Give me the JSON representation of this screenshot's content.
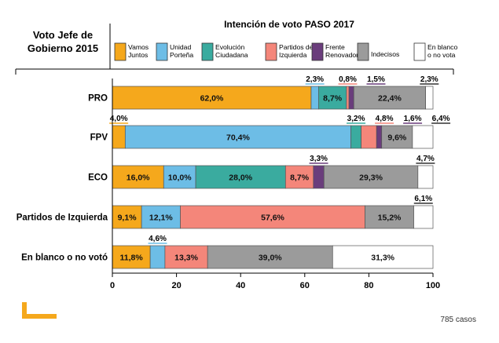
{
  "left_title_lines": [
    "Voto Jefe de",
    "Gobierno 2015"
  ],
  "footer_note": "785 casos",
  "colors": {
    "logo": "#f5a81c",
    "axis": "#000000"
  },
  "chart_data": {
    "type": "bar",
    "orientation": "horizontal",
    "stacked": true,
    "title": "Intención de voto PASO 2017",
    "xlim": [
      0,
      100
    ],
    "x_ticks": [
      0,
      20,
      40,
      60,
      80,
      100
    ],
    "grid": false,
    "legend_position": "top",
    "categories": [
      "PRO",
      "FPV",
      "ECO",
      "Partidos de Izquierda",
      "En blanco o no votó"
    ],
    "series": [
      {
        "name": "Vamos Juntos",
        "legend_lines": [
          "Vamos",
          "Juntos"
        ],
        "color": "#f5a81c",
        "values": [
          62.0,
          4.0,
          16.0,
          9.1,
          11.8
        ],
        "labels": [
          "62,0%",
          "4,0%",
          "16,0%",
          "9,1%",
          "11,8%"
        ]
      },
      {
        "name": "Unidad Porteña",
        "legend_lines": [
          "Unidad",
          "Porteña"
        ],
        "color": "#6dbde6",
        "values": [
          2.3,
          70.4,
          10.0,
          12.1,
          4.6
        ],
        "labels": [
          "2,3%",
          "70,4%",
          "10,0%",
          "12,1%",
          "4,6%"
        ]
      },
      {
        "name": "Evolución Ciudadana",
        "legend_lines": [
          "Evolución",
          "Ciudadana"
        ],
        "color": "#3aab9f",
        "values": [
          8.7,
          3.2,
          28.0,
          0,
          0
        ],
        "labels": [
          "8,7%",
          "3,2%",
          "28,0%",
          "",
          ""
        ]
      },
      {
        "name": "Partidos de Izquierda",
        "legend_lines": [
          "Partidos de",
          "Izquierda"
        ],
        "color": "#f4867a",
        "values": [
          0.8,
          4.8,
          8.7,
          57.6,
          13.3
        ],
        "labels": [
          "0,8%",
          "4,8%",
          "8,7%",
          "57,6%",
          "13,3%"
        ]
      },
      {
        "name": "Frente Renovador",
        "legend_lines": [
          "Frente",
          "Renovador"
        ],
        "color": "#6a3d7c",
        "values": [
          1.5,
          1.6,
          3.3,
          0,
          0
        ],
        "labels": [
          "1,5%",
          "1,6%",
          "3,3%",
          "",
          ""
        ]
      },
      {
        "name": "Indecisos",
        "legend_lines": [
          "Indecisos"
        ],
        "color": "#9b9b9b",
        "values": [
          22.4,
          9.6,
          29.3,
          15.2,
          39.0
        ],
        "labels": [
          "22,4%",
          "9,6%",
          "29,3%",
          "15,2%",
          "39,0%"
        ]
      },
      {
        "name": "En blanco o no vota",
        "legend_lines": [
          "En blanco",
          "o no vota"
        ],
        "color": "#ffffff",
        "values": [
          2.3,
          6.4,
          4.7,
          6.1,
          31.3
        ],
        "labels": [
          "2,3%",
          "6,4%",
          "4,7%",
          "6,1%",
          "31,3%"
        ]
      }
    ]
  }
}
